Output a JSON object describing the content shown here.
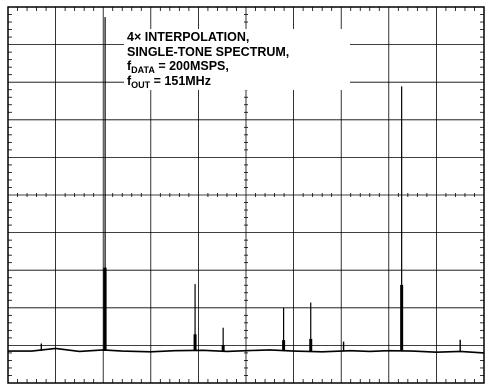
{
  "chart_data": {
    "type": "line",
    "title": "",
    "xlabel": "",
    "ylabel": "",
    "grid": true,
    "grid_divisions": {
      "x": 10,
      "y": 10
    },
    "minor_ticks_per_division": 5,
    "xlim": [
      0,
      10
    ],
    "ylim": [
      0,
      10
    ],
    "noise_floor_div": 0.85,
    "series": [
      {
        "type": "line",
        "x": [
          0.5,
          1.0,
          1.5,
          2.0,
          2.4,
          3.0,
          3.5,
          4.1,
          4.6,
          5.0,
          5.5,
          6.0,
          6.6,
          7.2,
          7.6,
          8.0,
          8.5,
          9.0,
          9.5,
          10.0
        ],
        "y": [
          0.85,
          0.92,
          0.84,
          0.88,
          0.85,
          0.83,
          0.86,
          0.87,
          0.84,
          0.86,
          0.88,
          0.85,
          0.83,
          0.86,
          0.84,
          0.86,
          0.85,
          0.82,
          0.84,
          0.8
        ]
      },
      {
        "type": "spikes",
        "x": [
          2.04,
          3.93,
          4.52,
          5.79,
          6.36,
          8.27
        ],
        "y": [
          9.73,
          2.63,
          1.47,
          2.01,
          2.14,
          7.89
        ]
      },
      {
        "type": "spikes",
        "x": [
          0.7,
          7.05,
          9.5
        ],
        "y": [
          1.05,
          1.1,
          1.15
        ]
      }
    ],
    "annotation": {
      "line1": "4× INTERPOLATION,",
      "line2": "SINGLE-TONE SPECTRUM,",
      "line3_main": "f",
      "line3_sub": "DATA",
      "line3_rest": " = 200MSPS,",
      "line4_main": "f",
      "line4_sub": "OUT",
      "line4_rest": " = 151MHz"
    },
    "colors": {
      "trace": "#000000",
      "grid": "#000000",
      "background": "#ffffff"
    }
  }
}
